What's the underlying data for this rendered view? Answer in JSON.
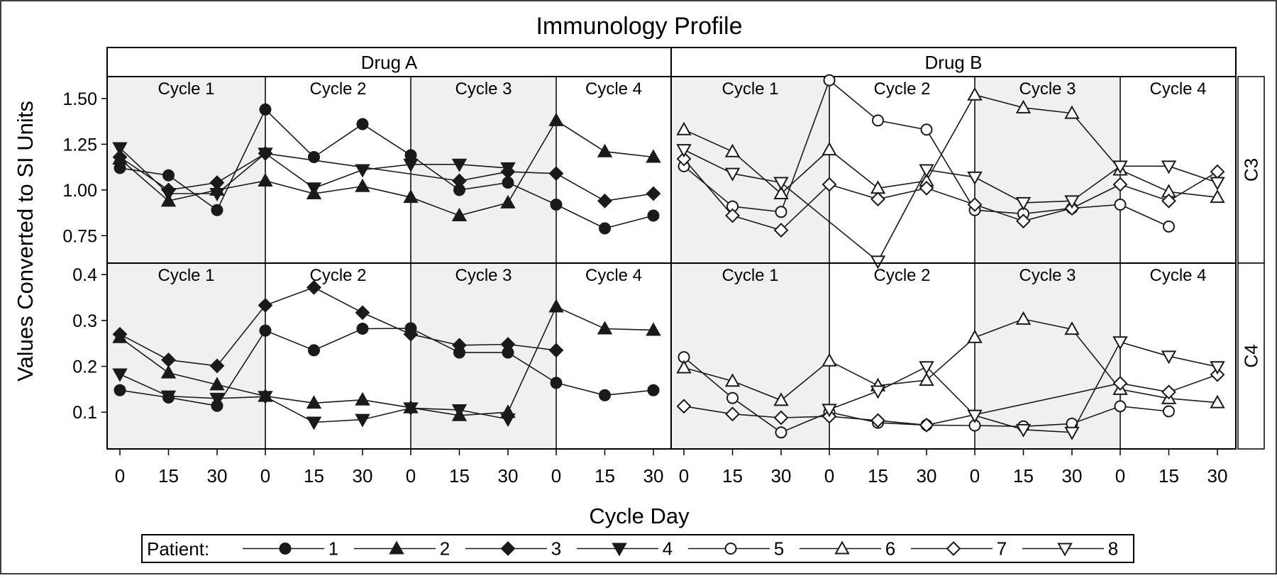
{
  "chart_data": {
    "type": "line",
    "title": "Immunology Profile",
    "xlabel": "Cycle Day",
    "ylabel": "Values Converted to SI Units",
    "columns": [
      "Drug A",
      "Drug B"
    ],
    "rows": [
      "C3",
      "C4"
    ],
    "cycles": [
      "Cycle 1",
      "Cycle 2",
      "Cycle 3",
      "Cycle 4"
    ],
    "cycle_days": [
      0,
      15,
      30
    ],
    "x_tick_labels": [
      "0",
      "15",
      "30",
      "0",
      "15",
      "30",
      "0",
      "15",
      "30",
      "0",
      "15",
      "30"
    ],
    "shaded_cycles": [
      "Cycle 1",
      "Cycle 3"
    ],
    "y_axes": {
      "C3": {
        "ylim": [
          0.6,
          1.62
        ],
        "ticks": [
          0.75,
          1.0,
          1.25,
          1.5
        ],
        "tick_labels": [
          "0.75",
          "1.00",
          "1.25",
          "1.50"
        ]
      },
      "C4": {
        "ylim": [
          0.02,
          0.425
        ],
        "ticks": [
          0.1,
          0.2,
          0.3,
          0.4
        ],
        "tick_labels": [
          "0.1",
          "0.2",
          "0.3",
          "0.4"
        ]
      }
    },
    "legend": {
      "title": "Patient:",
      "placement": "bottom",
      "entries": [
        {
          "name": "1",
          "marker": "circle",
          "filled": true
        },
        {
          "name": "2",
          "marker": "triangle-up",
          "filled": true
        },
        {
          "name": "3",
          "marker": "diamond",
          "filled": true
        },
        {
          "name": "4",
          "marker": "triangle-down",
          "filled": true
        },
        {
          "name": "5",
          "marker": "circle",
          "filled": false
        },
        {
          "name": "6",
          "marker": "triangle-up",
          "filled": false
        },
        {
          "name": "7",
          "marker": "diamond",
          "filled": false
        },
        {
          "name": "8",
          "marker": "triangle-down",
          "filled": false
        }
      ]
    },
    "panels": [
      {
        "column": "Drug A",
        "row": "C3",
        "series": [
          {
            "name": "1",
            "values": [
              1.12,
              1.08,
              0.89,
              1.44,
              1.18,
              1.36,
              1.19,
              1.0,
              1.04,
              0.92,
              0.79,
              0.86
            ]
          },
          {
            "name": "2",
            "values": [
              1.17,
              0.94,
              1.0,
              1.05,
              0.98,
              1.02,
              0.96,
              0.86,
              0.93,
              1.38,
              1.21,
              1.18
            ]
          },
          {
            "name": "3",
            "values": [
              1.18,
              1.0,
              1.04,
              1.2,
              null,
              null,
              null,
              1.05,
              1.1,
              1.09,
              0.94,
              0.98
            ]
          },
          {
            "name": "4",
            "values": [
              1.23,
              0.98,
              0.98,
              1.2,
              1.01,
              1.11,
              1.14,
              1.14,
              1.12,
              null,
              null,
              null
            ]
          }
        ]
      },
      {
        "column": "Drug A",
        "row": "C4",
        "series": [
          {
            "name": "1",
            "values": [
              0.148,
              0.132,
              0.114,
              0.278,
              0.235,
              0.282,
              0.283,
              0.23,
              0.23,
              0.164,
              0.137,
              0.148
            ]
          },
          {
            "name": "2",
            "values": [
              0.263,
              0.186,
              0.16,
              0.135,
              0.12,
              0.127,
              0.11,
              0.093,
              0.1,
              0.33,
              0.282,
              0.279
            ]
          },
          {
            "name": "3",
            "values": [
              0.27,
              0.214,
              0.201,
              0.333,
              0.372,
              0.317,
              0.27,
              0.246,
              0.248,
              0.235,
              null,
              null
            ]
          },
          {
            "name": "4",
            "values": [
              0.183,
              0.135,
              0.13,
              0.134,
              0.078,
              0.084,
              0.109,
              0.105,
              0.085,
              null,
              null,
              null
            ]
          }
        ]
      },
      {
        "column": "Drug B",
        "row": "C3",
        "series": [
          {
            "name": "5",
            "values": [
              1.13,
              0.91,
              0.88,
              1.6,
              1.38,
              1.33,
              0.89,
              0.87,
              0.9,
              0.92,
              0.8,
              null
            ]
          },
          {
            "name": "6",
            "values": [
              1.33,
              1.21,
              0.98,
              1.22,
              1.01,
              1.05,
              1.52,
              1.45,
              1.42,
              1.11,
              0.99,
              0.96
            ]
          },
          {
            "name": "7",
            "values": [
              1.17,
              0.86,
              0.78,
              1.03,
              0.95,
              1.01,
              0.92,
              0.83,
              0.9,
              1.03,
              0.94,
              1.1
            ]
          },
          {
            "name": "8",
            "values": [
              1.22,
              1.09,
              1.04,
              null,
              0.61,
              1.11,
              1.07,
              0.93,
              0.94,
              1.13,
              1.13,
              1.04
            ]
          }
        ]
      },
      {
        "column": "Drug B",
        "row": "C4",
        "series": [
          {
            "name": "5",
            "values": [
              0.22,
              0.131,
              0.056,
              0.1,
              0.077,
              0.072,
              0.071,
              0.069,
              0.075,
              0.113,
              0.102,
              null
            ]
          },
          {
            "name": "6",
            "values": [
              0.197,
              0.168,
              0.126,
              0.212,
              0.158,
              0.17,
              0.263,
              0.303,
              0.281,
              0.15,
              0.13,
              0.121
            ]
          },
          {
            "name": "7",
            "values": [
              0.113,
              0.096,
              0.088,
              0.091,
              0.082,
              0.072,
              null,
              null,
              null,
              0.163,
              0.144,
              0.182
            ]
          },
          {
            "name": "8",
            "values": [
              null,
              null,
              null,
              0.106,
              0.146,
              0.199,
              0.093,
              0.062,
              0.056,
              0.253,
              0.222,
              0.199
            ]
          }
        ]
      }
    ]
  }
}
